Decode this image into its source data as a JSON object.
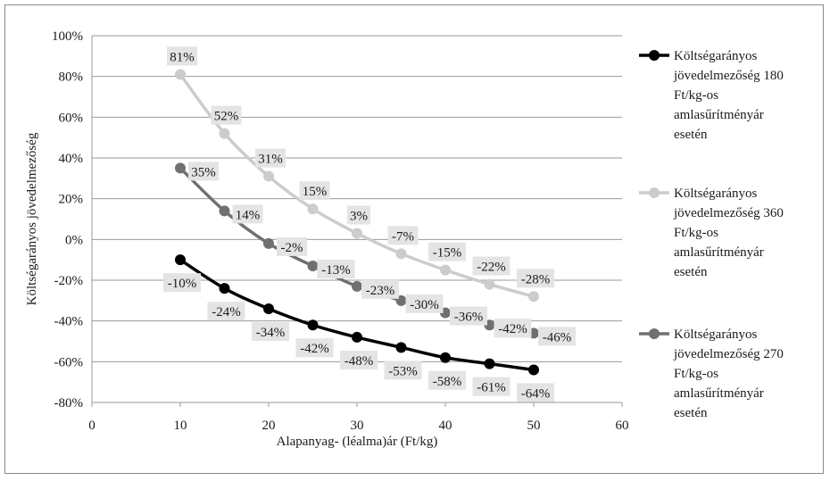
{
  "chart_data": {
    "type": "line",
    "xlabel": "Alapanyag- (léalma)ár (Ft/kg)",
    "ylabel": "Költségarányos jövedelmezőség",
    "xlim": [
      0,
      60
    ],
    "ylim": [
      -80,
      100
    ],
    "x_ticks": [
      "0",
      "10",
      "20",
      "30",
      "40",
      "50",
      "60"
    ],
    "y_ticks": [
      "100%",
      "80%",
      "60%",
      "40%",
      "20%",
      "0%",
      "-20%",
      "-40%",
      "-60%",
      "-80%"
    ],
    "grid": "horizontal",
    "legend_position": "right",
    "x": [
      10,
      15,
      20,
      25,
      30,
      35,
      40,
      45,
      50
    ],
    "series": [
      {
        "name": "Költségarányos jövedelmezőség 180 Ft/kg-os amlasűrítményár esetén",
        "legend_lines": [
          "Költségarányos",
          "jövedelmezőség  180",
          "Ft/kg-os",
          "amlasűrítményár",
          "esetén"
        ],
        "color": "#000000",
        "values": [
          -10,
          -24,
          -34,
          -42,
          -48,
          -53,
          -58,
          -61,
          -64
        ],
        "labels": [
          "-10%",
          "-24%",
          "-34%",
          "-42%",
          "-48%",
          "-53%",
          "-58%",
          "-61%",
          "-64%"
        ]
      },
      {
        "name": "Költségarányos jövedelmezőség 360 Ft/kg-os amlasűrítményár esetén",
        "legend_lines": [
          "Költségarányos",
          "jövedelmezőség  360",
          "Ft/kg-os",
          "amlasűrítményár",
          "esetén"
        ],
        "color": "#cccccc",
        "values": [
          81,
          52,
          31,
          15,
          3,
          -7,
          -15,
          -22,
          -28
        ],
        "labels": [
          "81%",
          "52%",
          "31%",
          "15%",
          "3%",
          "-7%",
          "-15%",
          "-22%",
          "-28%"
        ]
      },
      {
        "name": "Költségarányos jövedelmezőség 270 Ft/kg-os amlasűrítményár esetén",
        "legend_lines": [
          "Költségarányos",
          "jövedelmezőség  270",
          "Ft/kg-os",
          "amlasűrítményár",
          "esetén"
        ],
        "color": "#707070",
        "values": [
          35,
          14,
          -2,
          -13,
          -23,
          -30,
          -36,
          -42,
          -46
        ],
        "labels": [
          "35%",
          "14%",
          "-2%",
          "-13%",
          "-23%",
          "-30%",
          "-36%",
          "-42%",
          "-46%"
        ]
      }
    ]
  }
}
